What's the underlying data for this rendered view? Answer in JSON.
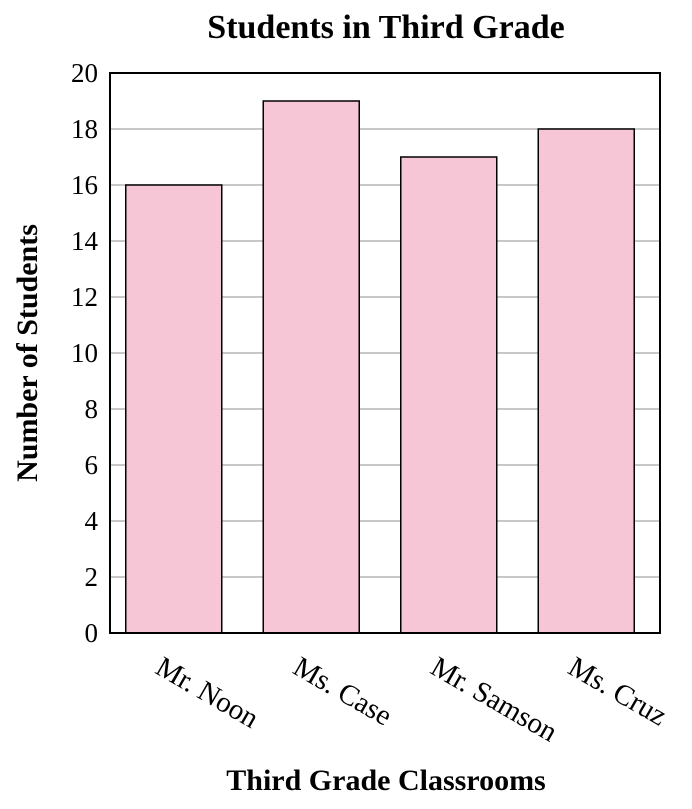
{
  "chart_data": {
    "type": "bar",
    "title": "Students in Third Grade",
    "xlabel": "Third Grade Classrooms",
    "ylabel": "Number of Students",
    "categories": [
      "Mr. Noon",
      "Ms. Case",
      "Mr. Samson",
      "Ms. Cruz"
    ],
    "values": [
      16,
      19,
      17,
      18
    ],
    "ylim": [
      0,
      20
    ],
    "yticks": [
      "0",
      "2",
      "4",
      "6",
      "8",
      "10",
      "12",
      "14",
      "16",
      "18",
      "20"
    ],
    "grid": true,
    "legend": "none",
    "bar_color": "#f7c6d6"
  }
}
